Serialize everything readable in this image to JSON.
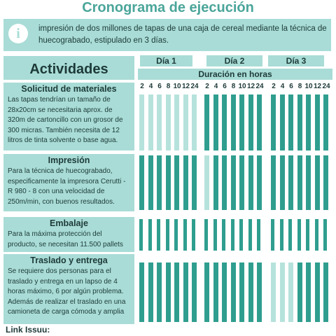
{
  "title": "Cronograma de ejecución",
  "info": {
    "text": "impresión de dos millones de tapas de una caja de cereal mediante la técnica de huecograbado, estipulado en 3 días."
  },
  "table": {
    "activities_header": "Actividades",
    "days": [
      "Día 1",
      "Día 2",
      "Día 3"
    ],
    "duration_header": "Duración en horas",
    "hours": [
      "2",
      "4",
      "6",
      "8",
      "10",
      "12",
      "24"
    ],
    "activities": [
      {
        "title": "Solicitud de materiales",
        "description": "Las tapas tendrían un tamaño de 28x20cm se necesitaria aprox. de 320m de cartoncillo con un grosor de 300 micras. También necesita de 12 litros de tinta solvente o base agua."
      },
      {
        "title": "Impresión",
        "description": "Para la técnica de huecograbado, especificamente la impresora Cerutti - R 980 - 8 con una velocidad de 250m/min, con buenos resultados."
      },
      {
        "title": "Embalaje",
        "description": "Para la máxima protección del producto, se necesitan 11.500 pallets"
      },
      {
        "title": "Traslado y entrega",
        "description": "Se requiere dos personas para el traslado y entrega en un lapso de 4 horas máximo, 6 por algún problema. Además de realizar el traslado en una camioneta de carga cómoda y amplia"
      }
    ]
  },
  "footer": {
    "link_label": "Link Issuu:"
  }
}
